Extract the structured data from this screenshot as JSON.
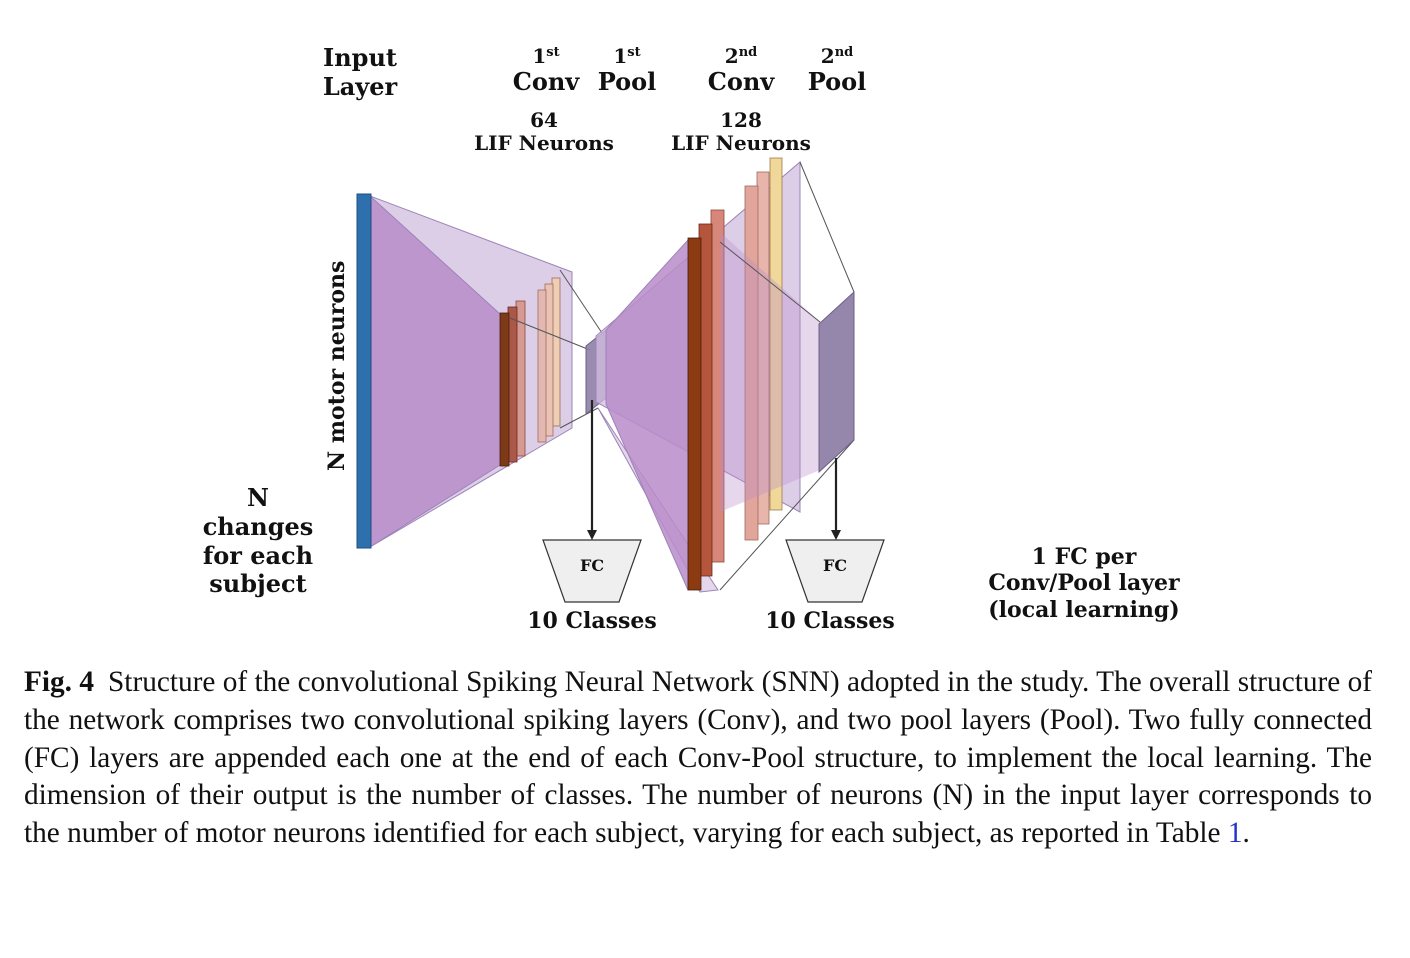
{
  "diagram": {
    "labels": {
      "input_layer": [
        "Input",
        "Layer"
      ],
      "conv1": {
        "ordinal": "1",
        "suffix": "st",
        "name": "Conv"
      },
      "pool1": {
        "ordinal": "1",
        "suffix": "st",
        "name": "Pool"
      },
      "conv2": {
        "ordinal": "2",
        "suffix": "nd",
        "name": "Conv"
      },
      "pool2": {
        "ordinal": "2",
        "suffix": "nd",
        "name": "Pool"
      },
      "conv1_neurons": [
        "64",
        "LIF Neurons"
      ],
      "conv2_neurons": [
        "128",
        "LIF Neurons"
      ],
      "motor_neurons": "N motor neurons",
      "n_changes": [
        "N",
        "changes",
        "for each",
        "subject"
      ],
      "fc1": "FC",
      "fc2": "FC",
      "classes1": "10 Classes",
      "classes2": "10 Classes",
      "fc_note": [
        "1 FC per",
        "Conv/Pool layer",
        "(local learning)"
      ]
    },
    "colors": {
      "input_bar": "#2e6fad",
      "volume_fill": "#b98cc9",
      "volume_fill_light": "#d2bde0",
      "pool_block": "#8f7fa6",
      "fc_fill": "#efefef",
      "line": "#444444",
      "filters_conv1": [
        "#7d3a18",
        "#a9584a",
        "#d69a93",
        "#e4b8b2",
        "#eac3b6",
        "#eccfb5"
      ],
      "filters_conv2": [
        "#8b3a12",
        "#b4553c",
        "#d7867a",
        "#e2a59c",
        "#e8b5ac",
        "#f0d89a"
      ]
    }
  },
  "caption": {
    "fig_label": "Fig. 4",
    "text_before_ref": "Structure of the convolutional Spiking Neural Network (SNN) adopted in the study. The overall structure of the network comprises two convolutional spiking layers (Conv), and two pool layers (Pool). Two fully connected (FC) layers are appended each one at the end of each Conv-Pool structure, to implement the local learning. The dimension of their output is the number of classes. The number of neurons (N) in the input layer corresponds to the number of motor neurons identified for each subject, varying for each subject, as reported in Table ",
    "ref": "1",
    "text_after_ref": "."
  }
}
